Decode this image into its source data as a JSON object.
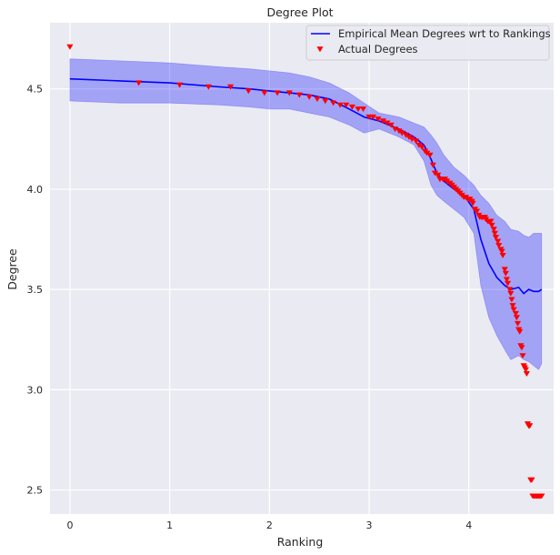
{
  "chart_data": {
    "type": "line",
    "title": "Degree Plot",
    "xlabel": "Ranking",
    "ylabel": "Degree",
    "xlim": [
      -0.2,
      4.85
    ],
    "ylim": [
      2.38,
      4.83
    ],
    "grid": true,
    "legend_position": "top-right",
    "x_ticks": [
      "0",
      "1",
      "2",
      "3",
      "4"
    ],
    "y_ticks": [
      "2.5",
      "3.0",
      "3.5",
      "4.0",
      "4.5"
    ],
    "colors": {
      "background": "#eaeaf2",
      "grid": "#ffffff",
      "mean_line": "#0000ff",
      "band": "#0000ff",
      "actual": "#ff0000"
    },
    "series": [
      {
        "name": "Empirical Mean Degrees wrt to Rankings",
        "kind": "line",
        "x": [
          0,
          0.5,
          1.0,
          1.5,
          1.8,
          2.0,
          2.2,
          2.4,
          2.6,
          2.8,
          2.95,
          3.1,
          3.3,
          3.45,
          3.55,
          3.62,
          3.68,
          3.75,
          3.85,
          3.95,
          4.05,
          4.12,
          4.2,
          4.28,
          4.36,
          4.42,
          4.5,
          4.55,
          4.6,
          4.65,
          4.7,
          4.73
        ],
        "y": [
          4.55,
          4.54,
          4.53,
          4.51,
          4.5,
          4.49,
          4.48,
          4.47,
          4.45,
          4.4,
          4.36,
          4.34,
          4.3,
          4.26,
          4.22,
          4.15,
          4.08,
          4.04,
          4.0,
          3.97,
          3.9,
          3.75,
          3.63,
          3.56,
          3.52,
          3.5,
          3.51,
          3.48,
          3.5,
          3.49,
          3.49,
          3.5
        ]
      },
      {
        "name": "Empirical Mean Degrees wrt to Rankings band",
        "kind": "band",
        "x": [
          0,
          0.5,
          1.0,
          1.5,
          1.8,
          2.0,
          2.2,
          2.4,
          2.6,
          2.8,
          2.95,
          3.1,
          3.3,
          3.45,
          3.55,
          3.62,
          3.68,
          3.75,
          3.85,
          3.95,
          4.05,
          4.12,
          4.2,
          4.28,
          4.36,
          4.42,
          4.5,
          4.55,
          4.6,
          4.65,
          4.7,
          4.73
        ],
        "upper": [
          4.65,
          4.64,
          4.63,
          4.61,
          4.6,
          4.59,
          4.58,
          4.56,
          4.53,
          4.48,
          4.43,
          4.38,
          4.36,
          4.33,
          4.31,
          4.27,
          4.23,
          4.17,
          4.11,
          4.07,
          4.02,
          3.97,
          3.93,
          3.87,
          3.84,
          3.8,
          3.79,
          3.77,
          3.76,
          3.78,
          3.78,
          3.78
        ],
        "lower": [
          4.44,
          4.43,
          4.43,
          4.42,
          4.41,
          4.4,
          4.4,
          4.38,
          4.36,
          4.32,
          4.28,
          4.3,
          4.26,
          4.22,
          4.14,
          4.02,
          3.97,
          3.94,
          3.9,
          3.86,
          3.78,
          3.52,
          3.36,
          3.27,
          3.2,
          3.15,
          3.17,
          3.15,
          3.14,
          3.12,
          3.1,
          3.13
        ]
      },
      {
        "name": "Actual Degrees",
        "kind": "scatter",
        "x": [
          0,
          0.69,
          1.1,
          1.39,
          1.61,
          1.79,
          1.95,
          2.08,
          2.2,
          2.3,
          2.4,
          2.48,
          2.56,
          2.64,
          2.71,
          2.77,
          2.83,
          2.89,
          2.94,
          3.0,
          3.04,
          3.09,
          3.14,
          3.18,
          3.22,
          3.26,
          3.3,
          3.33,
          3.37,
          3.4,
          3.43,
          3.47,
          3.5,
          3.53,
          3.56,
          3.58,
          3.61,
          3.64,
          3.66,
          3.69,
          3.71,
          3.74,
          3.76,
          3.78,
          3.81,
          3.83,
          3.85,
          3.87,
          3.89,
          3.91,
          3.93,
          3.95,
          3.97,
          3.99,
          4.01,
          4.03,
          4.04,
          4.06,
          4.08,
          4.1,
          4.11,
          4.13,
          4.14,
          4.16,
          4.17,
          4.19,
          4.2,
          4.22,
          4.23,
          4.25,
          4.26,
          4.27,
          4.29,
          4.3,
          4.32,
          4.33,
          4.34,
          4.36,
          4.37,
          4.38,
          4.39,
          4.41,
          4.42,
          4.43,
          4.44,
          4.45,
          4.47,
          4.48,
          4.49,
          4.5,
          4.51,
          4.52,
          4.53,
          4.54,
          4.55,
          4.56,
          4.57,
          4.58,
          4.59,
          4.6,
          4.61,
          4.62,
          4.63,
          4.64,
          4.65,
          4.66,
          4.67,
          4.68,
          4.69,
          4.7,
          4.71,
          4.72,
          4.73
        ],
        "y": [
          4.71,
          4.53,
          4.52,
          4.51,
          4.51,
          4.49,
          4.48,
          4.48,
          4.48,
          4.47,
          4.46,
          4.45,
          4.44,
          4.43,
          4.42,
          4.42,
          4.41,
          4.4,
          4.4,
          4.36,
          4.36,
          4.35,
          4.34,
          4.33,
          4.32,
          4.3,
          4.29,
          4.28,
          4.27,
          4.26,
          4.25,
          4.24,
          4.22,
          4.21,
          4.19,
          4.18,
          4.17,
          4.12,
          4.08,
          4.07,
          4.05,
          4.05,
          4.05,
          4.04,
          4.03,
          4.02,
          4.01,
          4.0,
          3.99,
          3.98,
          3.97,
          3.96,
          3.96,
          3.95,
          3.95,
          3.94,
          3.93,
          3.9,
          3.89,
          3.87,
          3.86,
          3.86,
          3.86,
          3.86,
          3.85,
          3.84,
          3.84,
          3.84,
          3.82,
          3.8,
          3.78,
          3.76,
          3.74,
          3.72,
          3.7,
          3.69,
          3.67,
          3.6,
          3.58,
          3.55,
          3.53,
          3.5,
          3.48,
          3.45,
          3.42,
          3.4,
          3.38,
          3.36,
          3.33,
          3.3,
          3.29,
          3.22,
          3.21,
          3.17,
          3.12,
          3.11,
          3.1,
          3.08,
          2.83,
          2.82,
          2.82,
          2.55,
          2.55,
          2.47,
          2.47,
          2.47,
          2.47,
          2.47,
          2.47,
          2.47,
          2.47,
          2.47,
          2.47
        ]
      }
    ]
  }
}
